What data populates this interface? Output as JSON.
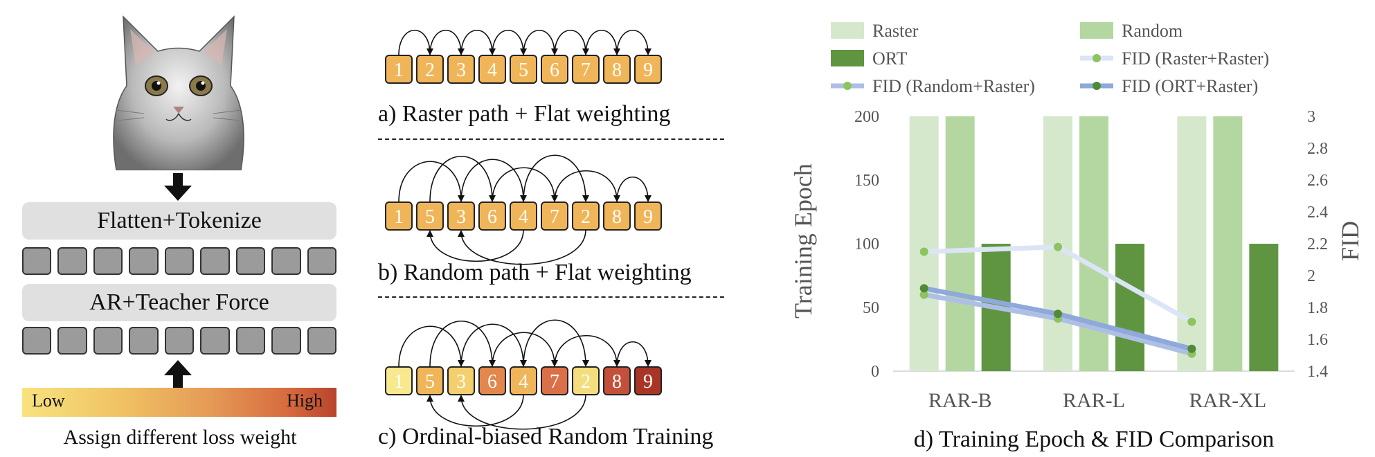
{
  "panel_a": {
    "flatten_label": "Flatten+Tokenize",
    "ar_label": "AR+Teacher Force",
    "gradient_low": "Low",
    "gradient_high": "High",
    "caption": "Assign different loss weight"
  },
  "panel_b": {
    "raster": {
      "tokens": [
        "1",
        "2",
        "3",
        "4",
        "5",
        "6",
        "7",
        "8",
        "9"
      ],
      "caption": "a) Raster path + Flat weighting"
    },
    "random": {
      "tokens": [
        "1",
        "5",
        "3",
        "6",
        "4",
        "7",
        "2",
        "8",
        "9"
      ],
      "caption": "b) Random path + Flat weighting"
    },
    "ordinal": {
      "tokens": [
        "1",
        "5",
        "3",
        "6",
        "4",
        "7",
        "2",
        "8",
        "9"
      ],
      "caption": "c) Ordinal-biased Random Training"
    },
    "colors": {
      "flat": "#f0b558",
      "weights": [
        "#f8e98f",
        "#f0b558",
        "#f3cf6e",
        "#e3874c",
        "#f0b558",
        "#db7048",
        "#f3dd7d",
        "#c5503a",
        "#a83526"
      ]
    }
  },
  "chart_data": {
    "type": "bar",
    "title": "d) Training Epoch & FID Comparison",
    "categories": [
      "RAR-B",
      "RAR-L",
      "RAR-XL"
    ],
    "ylabel": "Training Epoch",
    "y2label": "FID",
    "ylim": [
      0,
      200
    ],
    "y2lim": [
      1.4,
      3.0
    ],
    "yticks": [
      "0",
      "50",
      "100",
      "150",
      "200"
    ],
    "y2ticks": [
      "1.4",
      "1.6",
      "1.8",
      "2",
      "2.2",
      "2.4",
      "2.6",
      "2.8",
      "3"
    ],
    "bar_series": [
      {
        "name": "Raster",
        "values": [
          200,
          200,
          200
        ],
        "color": "#d6e8cc"
      },
      {
        "name": "Random",
        "values": [
          200,
          200,
          200
        ],
        "color": "#b4d7a1"
      },
      {
        "name": "ORT",
        "values": [
          100,
          100,
          100
        ],
        "color": "#5f9541"
      }
    ],
    "line_series": [
      {
        "name": "FID (Raster+Raster)",
        "values": [
          2.15,
          2.18,
          1.71
        ],
        "color": "#dbe5f5",
        "marker": "#8cc45f"
      },
      {
        "name": "FID (Random+Raster)",
        "values": [
          1.88,
          1.73,
          1.51
        ],
        "color": "#aebfe6",
        "marker": "#8cc45f"
      },
      {
        "name": "FID (ORT+Raster)",
        "values": [
          1.92,
          1.76,
          1.54
        ],
        "color": "#8ea9da",
        "marker": "#4f8a35"
      }
    ],
    "legend_position": "top"
  }
}
